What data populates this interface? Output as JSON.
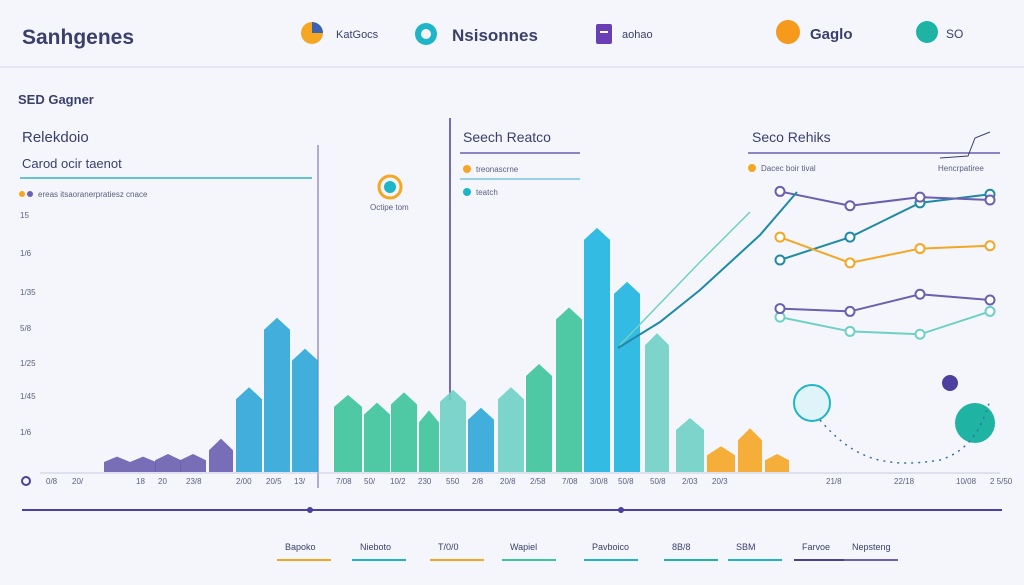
{
  "header": {
    "title": "Sanhgenes",
    "items": [
      {
        "label": "KatGocs",
        "color": "#f5a623",
        "icon": "pie-icon"
      },
      {
        "label": "Nsisonnes",
        "color": "#1fb5c9",
        "icon": "ring-icon"
      },
      {
        "label": "aohao",
        "color": "#6a3fb5",
        "icon": "document-icon"
      },
      {
        "label": "Gaglo",
        "color": "#f59a1b",
        "icon": "circle-icon"
      },
      {
        "label": "SO",
        "color": "#1fb3a3",
        "icon": "circle-icon"
      }
    ]
  },
  "left_panel": {
    "label": "SED Gagner",
    "heading": "Relekdoio",
    "subheading": "Carod ocir taenot",
    "legend_text": "ereas itsaoranerpratiesz cnace",
    "badge_label": "Octipe tom"
  },
  "middle_panel": {
    "heading": "Seech Reatco",
    "legend": [
      {
        "label": "treonascrne",
        "color": "#f5a623"
      },
      {
        "label": "teatch",
        "color": "#1fb5c9"
      }
    ]
  },
  "right_panel": {
    "heading": "Seco Rehiks",
    "legend_left": "Dacec boir tival",
    "legend_right": "Hencrpatiree"
  },
  "colors": {
    "purple": "#6a5fb0",
    "teal": "#1fb5c9",
    "green": "#3cc49a",
    "orange": "#f5a623",
    "navy": "#4b3fa0"
  },
  "chart_data": {
    "type": "bar",
    "title": "",
    "y_tick_labels": [
      "15",
      "1/6",
      "1/35",
      "5/8",
      "1/25",
      "1/45",
      "1/6"
    ],
    "x_tick_labels": [
      "0/8",
      "20/",
      "18",
      "20",
      "23/8",
      "2/00",
      "20/5",
      "13/",
      "7/08",
      "50/",
      "10/2",
      "230",
      "550",
      "2/8",
      "20/8",
      "2/58",
      "7/08",
      "3/0/8",
      "50/8",
      "50/8",
      "2/03",
      "20/3",
      "21/8",
      "22/18",
      "10/08",
      "2 5/50"
    ],
    "ylim": [
      0,
      100
    ],
    "bars": [
      {
        "value": 6,
        "color": "#6a5fb0"
      },
      {
        "value": 6,
        "color": "#6a5fb0"
      },
      {
        "value": 7,
        "color": "#6a5fb0"
      },
      {
        "value": 7,
        "color": "#6a5fb0"
      },
      {
        "value": 13,
        "color": "#6a5fb0"
      },
      {
        "value": 33,
        "color": "#2ea6d8"
      },
      {
        "value": 60,
        "color": "#2ea6d8"
      },
      {
        "value": 48,
        "color": "#2ea6d8"
      },
      {
        "value": 30,
        "color": "#3cc49a"
      },
      {
        "value": 27,
        "color": "#3cc49a"
      },
      {
        "value": 31,
        "color": "#3cc49a"
      },
      {
        "value": 24,
        "color": "#3cc49a"
      },
      {
        "value": 32,
        "color": "#6fd0c4"
      },
      {
        "value": 25,
        "color": "#2ea6d8"
      },
      {
        "value": 33,
        "color": "#6fd0c4"
      },
      {
        "value": 42,
        "color": "#3cc49a"
      },
      {
        "value": 64,
        "color": "#3cc49a"
      },
      {
        "value": 95,
        "color": "#1fb5e0"
      },
      {
        "value": 74,
        "color": "#1fb5e0"
      },
      {
        "value": 54,
        "color": "#6fd0c4"
      },
      {
        "value": 21,
        "color": "#6fd0c4"
      },
      {
        "value": 10,
        "color": "#f5a623"
      },
      {
        "value": 17,
        "color": "#f5a623"
      },
      {
        "value": 7,
        "color": "#f5a623"
      }
    ],
    "line_series": [
      {
        "color": "#1f8aa8",
        "points": [
          [
            0,
            72
          ],
          [
            1,
            80
          ],
          [
            2,
            92
          ],
          [
            3,
            95
          ]
        ]
      },
      {
        "color": "#6a5fb0",
        "points": [
          [
            0,
            96
          ],
          [
            1,
            91
          ],
          [
            2,
            94
          ],
          [
            3,
            93
          ]
        ]
      },
      {
        "color": "#f5a623",
        "points": [
          [
            0,
            80
          ],
          [
            1,
            71
          ],
          [
            2,
            76
          ],
          [
            3,
            77
          ]
        ]
      },
      {
        "color": "#6fd0c4",
        "points": [
          [
            0,
            52
          ],
          [
            1,
            47
          ],
          [
            2,
            46
          ],
          [
            3,
            54
          ]
        ]
      },
      {
        "color": "#6a5fb0",
        "points": [
          [
            0,
            55
          ],
          [
            1,
            54
          ],
          [
            2,
            60
          ],
          [
            3,
            58
          ]
        ]
      }
    ]
  },
  "footer": {
    "labels": [
      {
        "text": "Bapoko",
        "color": "#f5a623"
      },
      {
        "text": "Nieboto",
        "color": "#1fb5c9"
      },
      {
        "text": "T/0/0",
        "color": "#f5a623"
      },
      {
        "text": "Wapiel",
        "color": "#3cc49a"
      },
      {
        "text": "Pavboico",
        "color": "#1fb5c9"
      },
      {
        "text": "8B/8",
        "color": "#1fb3a3"
      },
      {
        "text": "SBM",
        "color": "#1fb5c9"
      },
      {
        "text": "Farvoe",
        "color": "#4b3fa0"
      },
      {
        "text": "Nepsteng",
        "color": "#6a5fb0"
      }
    ]
  }
}
